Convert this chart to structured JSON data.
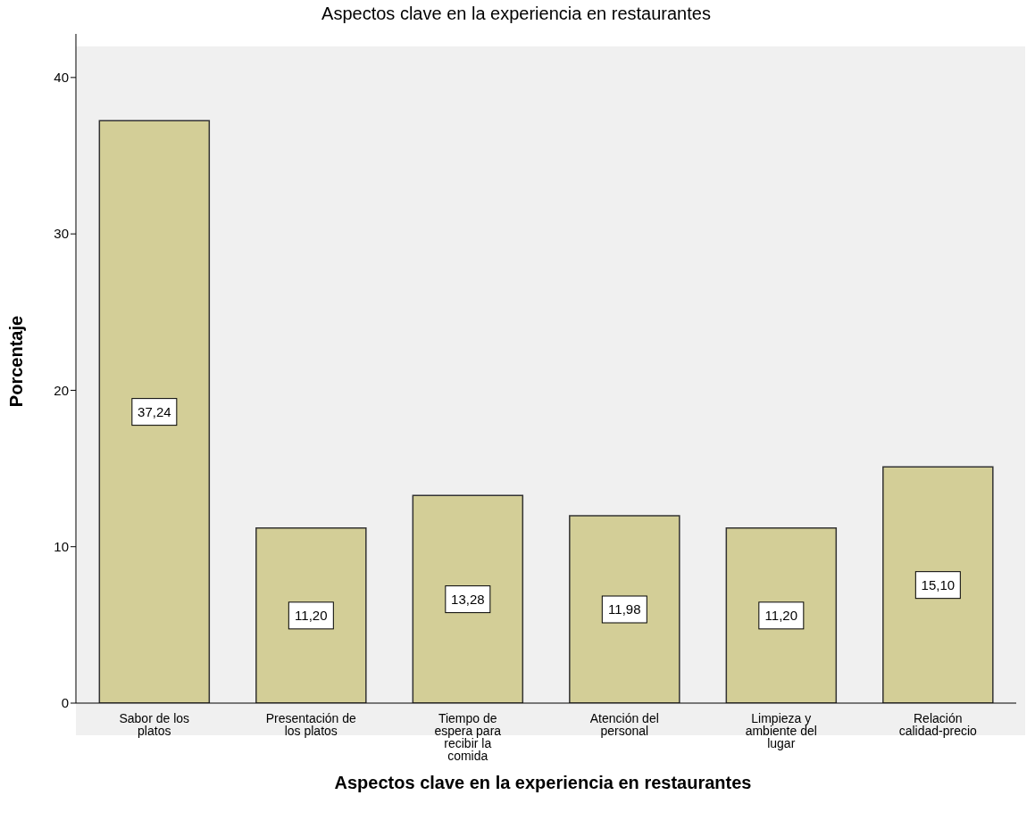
{
  "chart_data": {
    "type": "bar",
    "title": "Aspectos clave en la experiencia en restaurantes",
    "xlabel": "Aspectos clave en la experiencia en restaurantes",
    "ylabel": "Porcentaje",
    "categories": [
      "Sabor de los platos",
      "Presentación de los platos",
      "Tiempo de espera para recibir la comida",
      "Atención del personal",
      "Limpieza y ambiente del lugar",
      "Relación calidad-precio"
    ],
    "values": [
      37.24,
      11.2,
      13.28,
      11.98,
      11.2,
      15.1
    ],
    "value_labels": [
      "37,24",
      "11,20",
      "13,28",
      "11,98",
      "11,20",
      "15,10"
    ],
    "color": "#d3ce97",
    "ylim": [
      0,
      43.7
    ],
    "yticks": [
      0,
      10,
      20,
      30,
      40
    ],
    "grid": false
  }
}
